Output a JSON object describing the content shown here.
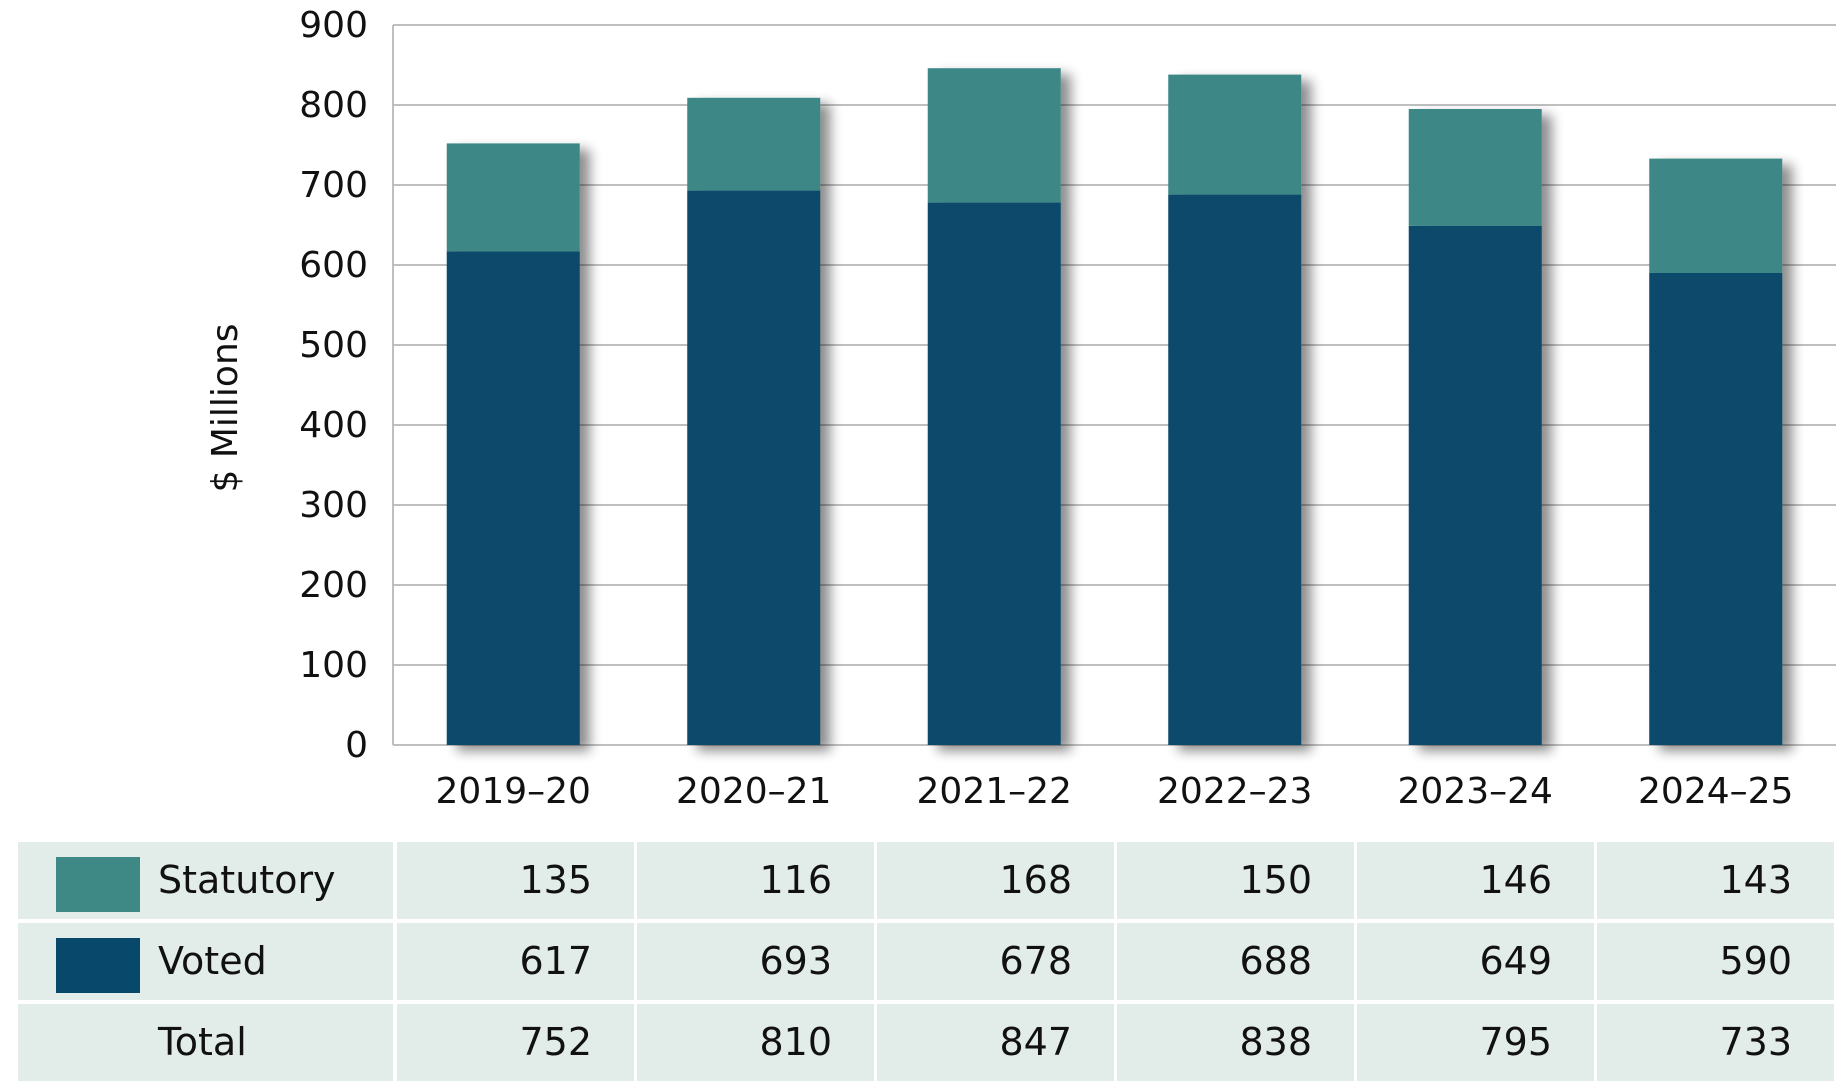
{
  "chart_data": {
    "type": "bar",
    "stacked": true,
    "categories": [
      "2019–20",
      "2020–21",
      "2021–22",
      "2022–23",
      "2023–24",
      "2024–25"
    ],
    "series": [
      {
        "name": "Voted",
        "values": [
          617,
          693,
          678,
          688,
          649,
          590
        ],
        "color": "#08486b"
      },
      {
        "name": "Statutory",
        "values": [
          135,
          116,
          168,
          150,
          146,
          143
        ],
        "color": "#3e8886"
      }
    ],
    "ylabel": "$ Millions",
    "xlabel": "",
    "ylim": [
      0,
      900
    ],
    "yticks": [
      0,
      100,
      200,
      300,
      400,
      500,
      600,
      700,
      800,
      900
    ],
    "ytick_labels": [
      "0",
      "100",
      "200",
      "300",
      "400",
      "500",
      "600",
      "700",
      "800",
      "900"
    ],
    "grid": true,
    "grid_color": "#bfbfbf"
  },
  "table": {
    "rows": [
      {
        "label": "Statutory",
        "swatch": "#3e8886",
        "values": [
          "135",
          "116",
          "168",
          "150",
          "146",
          "143"
        ]
      },
      {
        "label": "Voted",
        "swatch": "#08486b",
        "values": [
          "617",
          "693",
          "678",
          "688",
          "649",
          "590"
        ]
      },
      {
        "label": "Total",
        "swatch": null,
        "values": [
          "752",
          "810",
          "847",
          "838",
          "795",
          "733"
        ]
      }
    ]
  }
}
